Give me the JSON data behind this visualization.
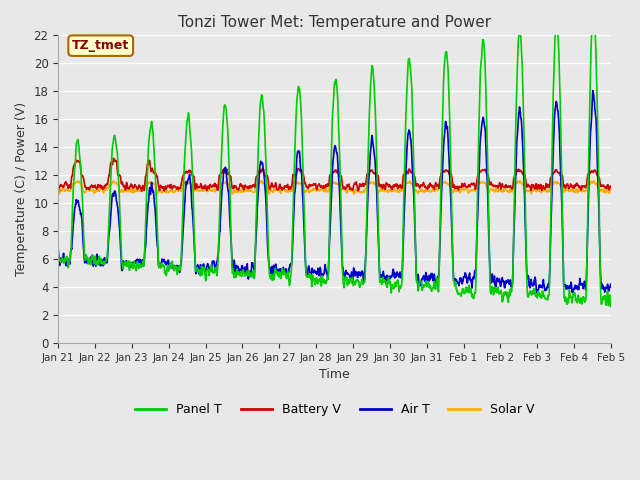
{
  "title": "Tonzi Tower Met: Temperature and Power",
  "xlabel": "Time",
  "ylabel": "Temperature (C) / Power (V)",
  "ylim": [
    0,
    22
  ],
  "yticks": [
    0,
    2,
    4,
    6,
    8,
    10,
    12,
    14,
    16,
    18,
    20,
    22
  ],
  "xtick_labels": [
    "Jan 21",
    "Jan 22",
    "Jan 23",
    "Jan 24",
    "Jan 25",
    "Jan 26",
    "Jan 27",
    "Jan 28",
    "Jan 29",
    "Jan 30",
    "Jan 31",
    "Feb 1",
    "Feb 2",
    "Feb 3",
    "Feb 4",
    "Feb 5"
  ],
  "bg_color": "#e8e8e8",
  "plot_bg_color": "#e8e8e8",
  "grid_color": "#ffffff",
  "series": {
    "panel_t": {
      "color": "#00cc00",
      "label": "Panel T"
    },
    "battery_v": {
      "color": "#cc0000",
      "label": "Battery V"
    },
    "air_t": {
      "color": "#0000cc",
      "label": "Air T"
    },
    "solar_v": {
      "color": "#ffaa00",
      "label": "Solar V"
    }
  },
  "annotation_text": "TZ_tmet",
  "annotation_bg": "#ffffcc",
  "annotation_border": "#aa6600",
  "legend_labels": [
    "Panel T",
    "Battery V",
    "Air T",
    "Solar V"
  ],
  "legend_colors": [
    "#00cc00",
    "#cc0000",
    "#0000cc",
    "#ffaa00"
  ]
}
